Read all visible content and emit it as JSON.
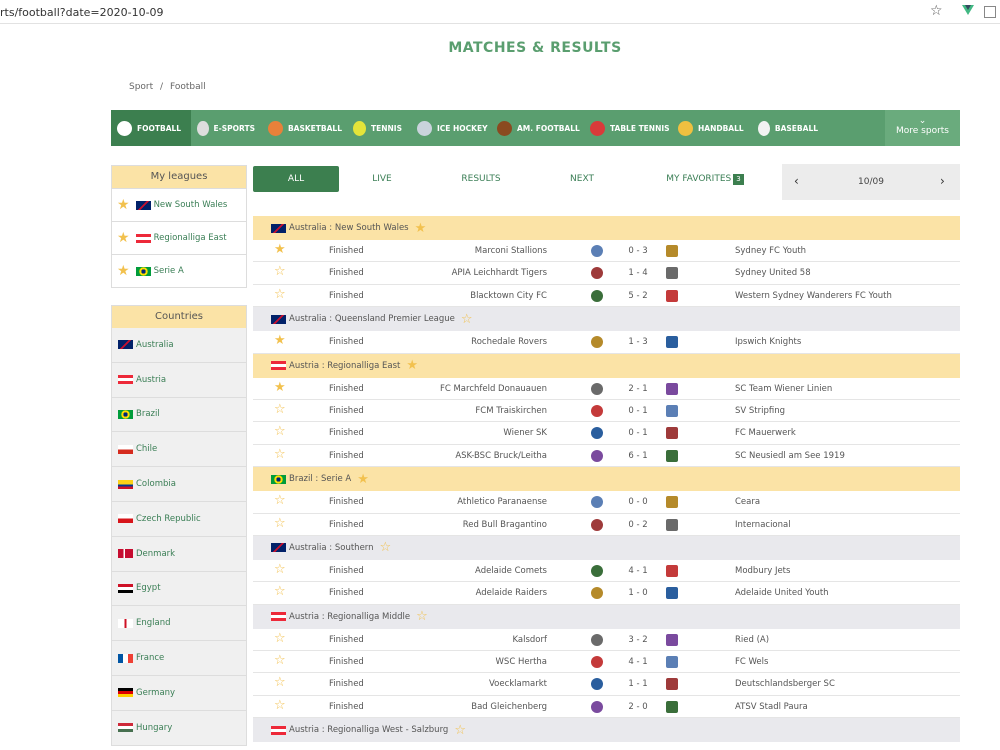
{
  "browser": {
    "url": "rts/football?date=2020-10-09"
  },
  "page": {
    "title": "MATCHES & RESULTS"
  },
  "breadcrumb": [
    "Sport",
    "/",
    "Football"
  ],
  "sports": [
    {
      "label": "FOOTBALL",
      "icon": "football-icon",
      "color": "#ffffff",
      "active": true
    },
    {
      "label": "E-SPORTS",
      "icon": "gamepad-icon",
      "color": "#dddddd"
    },
    {
      "label": "BASKETBALL",
      "icon": "basketball-icon",
      "color": "#e8813a"
    },
    {
      "label": "TENNIS",
      "icon": "tennis-ball-icon",
      "color": "#e4e43a"
    },
    {
      "label": "ICE HOCKEY",
      "icon": "ice-hockey-icon",
      "color": "#c9d3dc"
    },
    {
      "label": "AM. FOOTBALL",
      "icon": "american-football-icon",
      "color": "#8a4a20"
    },
    {
      "label": "TABLE TENNIS",
      "icon": "table-tennis-icon",
      "color": "#d93a3a"
    },
    {
      "label": "HANDBALL",
      "icon": "handball-icon",
      "color": "#f0c040"
    },
    {
      "label": "BASEBALL",
      "icon": "baseball-icon",
      "color": "#f2f2f2"
    }
  ],
  "more_sports": "More sports",
  "my_leagues": {
    "title": "My leagues",
    "items": [
      {
        "label": "New South Wales",
        "flag": "australia-flag"
      },
      {
        "label": "Regionalliga East",
        "flag": "austria-flag"
      },
      {
        "label": "Serie A",
        "flag": "brazil-flag"
      }
    ]
  },
  "countries": {
    "title": "Countries",
    "items": [
      {
        "label": "Australia",
        "flag": "australia-flag"
      },
      {
        "label": "Austria",
        "flag": "austria-flag"
      },
      {
        "label": "Brazil",
        "flag": "brazil-flag"
      },
      {
        "label": "Chile",
        "flag": "chile-flag"
      },
      {
        "label": "Colombia",
        "flag": "colombia-flag"
      },
      {
        "label": "Czech Republic",
        "flag": "czech-flag"
      },
      {
        "label": "Denmark",
        "flag": "denmark-flag"
      },
      {
        "label": "Egypt",
        "flag": "egypt-flag"
      },
      {
        "label": "England",
        "flag": "england-flag"
      },
      {
        "label": "France",
        "flag": "france-flag"
      },
      {
        "label": "Germany",
        "flag": "germany-flag"
      },
      {
        "label": "Hungary",
        "flag": "hungary-flag"
      }
    ]
  },
  "filters": {
    "all": "ALL",
    "live": "LIVE",
    "results": "RESULTS",
    "next": "NEXT",
    "favorites": "MY FAVORITES",
    "favorites_count": "3"
  },
  "date_nav": {
    "date": "10/09",
    "prev": "‹",
    "next": "›"
  },
  "groups": [
    {
      "label": "Australia : New South Wales",
      "favorite": true,
      "flag": "australia-flag",
      "matches": [
        {
          "starred": true,
          "status": "Finished",
          "home": "Marconi Stallions",
          "score": "0 - 3",
          "away": "Sydney FC Youth"
        },
        {
          "starred": false,
          "status": "Finished",
          "home": "APIA Leichhardt Tigers",
          "score": "1 - 4",
          "away": "Sydney United 58"
        },
        {
          "starred": false,
          "status": "Finished",
          "home": "Blacktown City FC",
          "score": "5 - 2",
          "away": "Western Sydney Wanderers FC Youth"
        }
      ]
    },
    {
      "label": "Australia : Queensland Premier League",
      "favorite": false,
      "flag": "australia-flag",
      "matches": [
        {
          "starred": true,
          "status": "Finished",
          "home": "Rochedale Rovers",
          "score": "1 - 3",
          "away": "Ipswich Knights"
        }
      ]
    },
    {
      "label": "Austria : Regionalliga East",
      "favorite": true,
      "flag": "austria-flag",
      "matches": [
        {
          "starred": true,
          "status": "Finished",
          "home": "FC Marchfeld Donauauen",
          "score": "2 - 1",
          "away": "SC Team Wiener Linien"
        },
        {
          "starred": false,
          "status": "Finished",
          "home": "FCM Traiskirchen",
          "score": "0 - 1",
          "away": "SV Stripfing"
        },
        {
          "starred": false,
          "status": "Finished",
          "home": "Wiener SK",
          "score": "0 - 1",
          "away": "FC Mauerwerk"
        },
        {
          "starred": false,
          "status": "Finished",
          "home": "ASK-BSC Bruck/Leitha",
          "score": "6 - 1",
          "away": "SC Neusiedl am See 1919"
        }
      ]
    },
    {
      "label": "Brazil : Serie A",
      "favorite": true,
      "flag": "brazil-flag",
      "matches": [
        {
          "starred": false,
          "status": "Finished",
          "home": "Athletico Paranaense",
          "score": "0 - 0",
          "away": "Ceara"
        },
        {
          "starred": false,
          "status": "Finished",
          "home": "Red Bull Bragantino",
          "score": "0 - 2",
          "away": "Internacional"
        }
      ]
    },
    {
      "label": "Australia : Southern",
      "favorite": false,
      "flag": "australia-flag",
      "matches": [
        {
          "starred": false,
          "status": "Finished",
          "home": "Adelaide Comets",
          "score": "4 - 1",
          "away": "Modbury Jets"
        },
        {
          "starred": false,
          "status": "Finished",
          "home": "Adelaide Raiders",
          "score": "1 - 0",
          "away": "Adelaide United Youth"
        }
      ]
    },
    {
      "label": "Austria : Regionalliga Middle",
      "favorite": false,
      "flag": "austria-flag",
      "matches": [
        {
          "starred": false,
          "status": "Finished",
          "home": "Kalsdorf",
          "score": "3 - 2",
          "away": "Ried (A)"
        },
        {
          "starred": false,
          "status": "Finished",
          "home": "WSC Hertha",
          "score": "4 - 1",
          "away": "FC Wels"
        },
        {
          "starred": false,
          "status": "Finished",
          "home": "Voecklamarkt",
          "score": "1 - 1",
          "away": "Deutschlandsberger SC"
        },
        {
          "starred": false,
          "status": "Finished",
          "home": "Bad Gleichenberg",
          "score": "2 - 0",
          "away": "ATSV Stadl Paura"
        }
      ]
    },
    {
      "label": "Austria : Regionalliga West - Salzburg",
      "favorite": false,
      "flag": "austria-flag",
      "matches": []
    }
  ],
  "colors": {
    "brand": "#5a9e6f",
    "brand_dark": "#3c7f4f",
    "favorite_bg": "#fbe3a6",
    "star": "#f2c14e"
  }
}
